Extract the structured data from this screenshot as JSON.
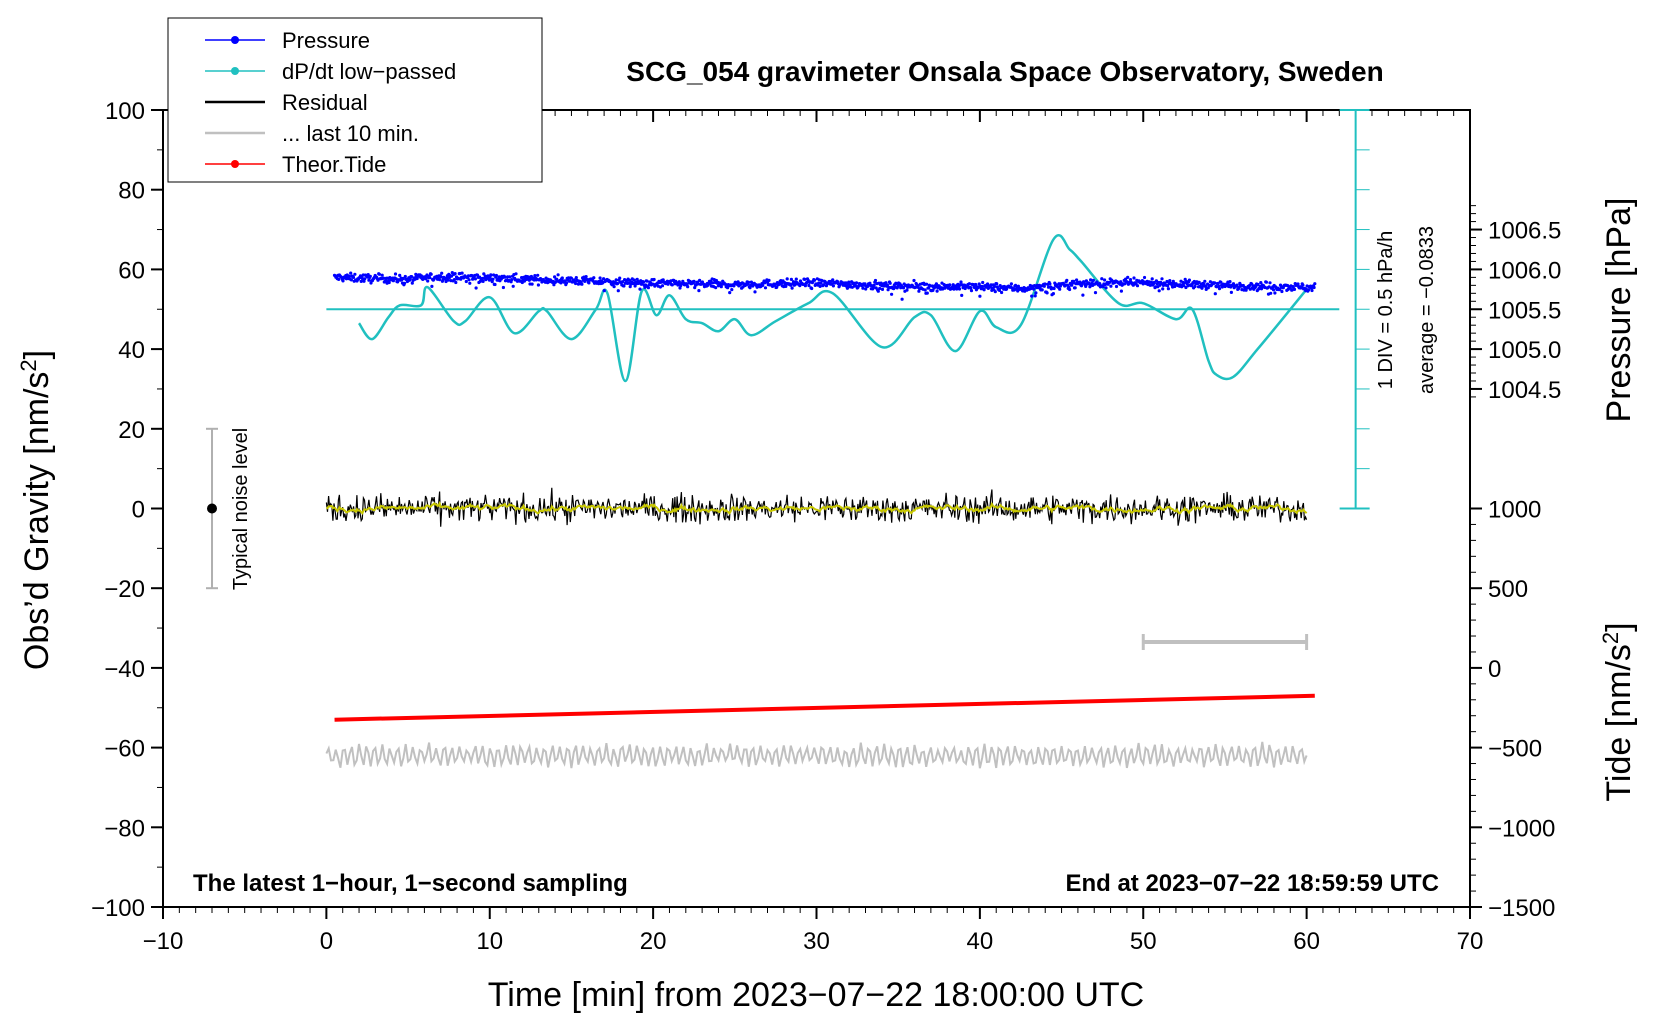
{
  "chart_data": {
    "type": "line",
    "title": "SCG_054 gravimeter Onsala Space Observatory, Sweden",
    "xlabel": "Time [min] from 2023−07−22 18:00:00 UTC",
    "ylabel_left_text": "Obs’d Gravity [nm/s",
    "ylabel_left_sup": "2",
    "ylabel_left_close": "]",
    "ylabel_right_pressure": "Pressure [hPa]",
    "ylabel_right_tide_text": "Tide [nm/s",
    "ylabel_right_tide_sup": "2",
    "ylabel_right_tide_close": "]",
    "xlim": [
      -10,
      70
    ],
    "ylim": [
      -100,
      100
    ],
    "x_ticks": [
      -10,
      0,
      10,
      20,
      30,
      40,
      50,
      60,
      70
    ],
    "x_tick_labels": [
      "−10",
      "0",
      "10",
      "20",
      "30",
      "40",
      "50",
      "60",
      "70"
    ],
    "y_ticks": [
      -100,
      -80,
      -60,
      -40,
      -20,
      0,
      20,
      40,
      60,
      80,
      100
    ],
    "y_tick_labels": [
      "−100",
      "−80",
      "−60",
      "−40",
      "−20",
      "0",
      "20",
      "40",
      "60",
      "80",
      "100"
    ],
    "pressure_ticks": [
      1006.5,
      1006.0,
      1005.5,
      1005.0,
      1004.5
    ],
    "pressure_tick_labels": [
      "1006.5",
      "1006.0",
      "1005.5",
      "1005.0",
      "1004.5"
    ],
    "pressure_reference": {
      "hpa": 1005.5,
      "gravity_equiv": 50,
      "gravity_per_hpa": 20
    },
    "tide_ticks": [
      1000,
      500,
      0,
      -500,
      -1000,
      -1500
    ],
    "tide_tick_labels": [
      "1000",
      "500",
      "0",
      "−500",
      "−1000",
      "−1500"
    ],
    "tide_reference": {
      "tide_value": -1500,
      "gravity_equiv": -100,
      "gravity_per_unit": 0.04
    },
    "legend": [
      {
        "label": "Pressure",
        "color": "#0000ff",
        "style": "line-dot"
      },
      {
        "label": "dP/dt low−passed",
        "color": "#20c0c0",
        "style": "line-dot"
      },
      {
        "label": "Residual",
        "color": "#000000",
        "style": "line"
      },
      {
        "label": "... last 10 min.",
        "color": "#c0c0c0",
        "style": "line"
      },
      {
        "label": "Theor.Tide",
        "color": "#ff0000",
        "style": "line-dot"
      }
    ],
    "pressure_series": {
      "name": "Pressure",
      "color": "#0000ff",
      "x": [
        0.5,
        5,
        7,
        10,
        15,
        20,
        25,
        30,
        35,
        40,
        43,
        46,
        50,
        55,
        60.5
      ],
      "y": [
        58,
        57.5,
        58.2,
        57.8,
        57.2,
        56.5,
        56.2,
        56.6,
        55.8,
        55.6,
        55.2,
        56.5,
        56.6,
        56.0,
        55.5
      ]
    },
    "dpdt_series": {
      "name": "dP/dt low−passed",
      "color": "#20c0c0",
      "x": [
        2.0,
        2.8,
        3.8,
        4.5,
        5.8,
        6.2,
        7.8,
        8.5,
        10.0,
        11.5,
        13.0,
        13.5,
        15.0,
        16.5,
        17.2,
        18.3,
        19.3,
        20.2,
        21.0,
        22.0,
        23.0,
        24.0,
        25.0,
        26.0,
        27.5,
        29.5,
        31.0,
        34.0,
        36.0,
        37.0,
        38.5,
        40.0,
        41.0,
        42.5,
        44.5,
        45.5,
        46.2,
        48.5,
        50.0,
        52.0,
        53.0,
        54.0,
        54.5,
        55.5,
        57.0,
        60.0
      ],
      "y": [
        46.5,
        42.5,
        48.0,
        51.0,
        51.0,
        55.5,
        47.0,
        47.0,
        53.0,
        44.0,
        49.5,
        49.5,
        42.5,
        50.0,
        54.0,
        32.0,
        54.5,
        48.5,
        53.5,
        47.5,
        46.5,
        44.5,
        47.5,
        43.5,
        47.0,
        51.5,
        54.0,
        40.5,
        48.0,
        48.5,
        39.5,
        49.5,
        45.5,
        46.0,
        67.5,
        65.0,
        62.0,
        51.5,
        51.5,
        47.5,
        50.0,
        37.0,
        33.5,
        33.0,
        40.0,
        55.0
      ]
    },
    "dpdt_baseline": {
      "y": 50,
      "x_range": [
        0,
        62
      ]
    },
    "residual_series": {
      "name": "Residual",
      "color": "#000000",
      "smooth_color": "#c8c800",
      "x_range": [
        0,
        60
      ],
      "level": 0,
      "amplitude": 2.5
    },
    "last10_series": {
      "name": "... last 10 min.",
      "color": "#c0c0c0",
      "x_range": [
        0,
        60
      ],
      "level": -62,
      "amplitude": 2.5
    },
    "theor_tide_series": {
      "name": "Theor.Tide",
      "color": "#ff0000",
      "x": [
        0.5,
        60.5
      ],
      "y": [
        -53,
        -47
      ]
    },
    "last10_bracket": {
      "x": [
        50,
        60
      ],
      "y": -33.5,
      "color": "#c0c0c0"
    },
    "dpdt_scale_bar": {
      "x": 63,
      "y_range": [
        0,
        100
      ],
      "div_count": 10,
      "color": "#20c0c0"
    },
    "noise_bar": {
      "x": -7,
      "y_range": [
        -20,
        20
      ],
      "center": 0,
      "label": "Typical noise level"
    },
    "annotations": {
      "scale_div": "1 DIV = 0.5 hPa/h",
      "scale_avg": "average = −0.0833",
      "bottom_left": "The latest 1−hour, 1−second sampling",
      "bottom_right": "End at 2023−07−22 18:59:59 UTC"
    }
  }
}
